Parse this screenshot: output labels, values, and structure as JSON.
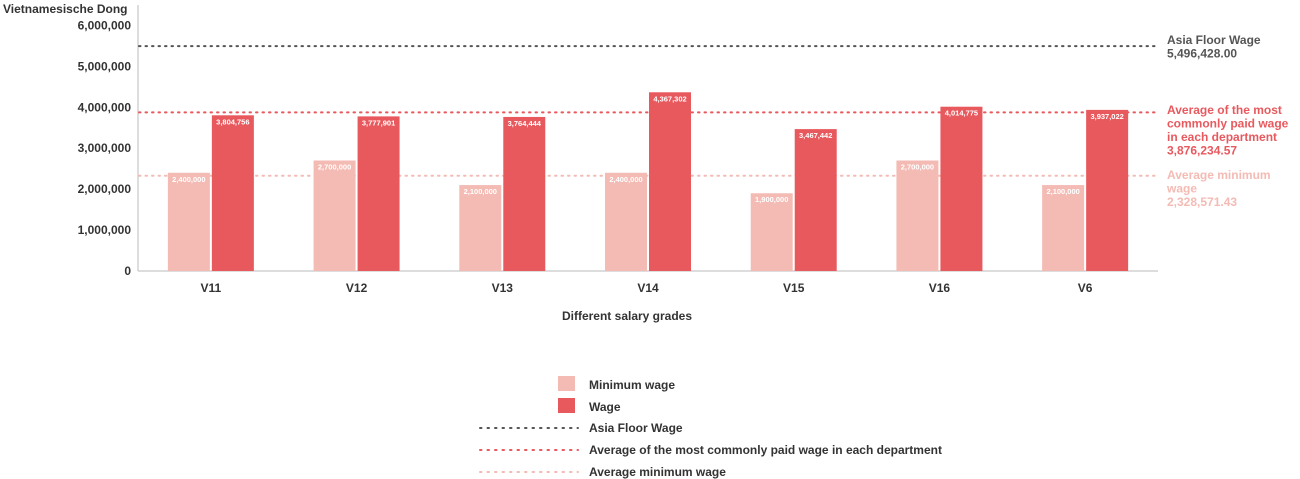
{
  "chart_data": {
    "type": "bar",
    "xlabel": "Different salary grades",
    "ylabel": "Vietnamesische Dong",
    "ylim": [
      0,
      6500000
    ],
    "yticks": [
      0,
      1000000,
      2000000,
      3000000,
      4000000,
      5000000,
      6000000
    ],
    "ytick_labels": [
      "0",
      "1,000,000",
      "2,000,000",
      "3,000,000",
      "4,000,000",
      "5,000,000",
      "6,000,000"
    ],
    "categories": [
      "V11",
      "V12",
      "V13",
      "V14",
      "V15",
      "V16",
      "V6"
    ],
    "series": [
      {
        "name": "Minimum wage",
        "color": "#f4bbb4",
        "values": [
          2400000,
          2700000,
          2100000,
          2400000,
          1900000,
          2700000,
          2100000
        ],
        "value_labels": [
          "2,400,000",
          "2,700,000",
          "2,100,000",
          "2,400,000",
          "1,900,000",
          "2,700,000",
          "2,100,000"
        ]
      },
      {
        "name": "Wage",
        "color": "#e8595e",
        "values": [
          3804756,
          3777901,
          3764444,
          4367302,
          3467442,
          4014775,
          3937022
        ],
        "value_labels": [
          "3,804,756",
          "3,777,901",
          "3,764,444",
          "4,367,302",
          "3,467,442",
          "4,014,775",
          "3,937,022"
        ]
      }
    ],
    "reference_lines": [
      {
        "name": "Asia Floor Wage",
        "value": 5496428.0,
        "label_lines": [
          "Asia Floor Wage"
        ],
        "value_label": "5,496,428.00",
        "color": "#555555"
      },
      {
        "name": "Average of the most commonly paid wage in each department",
        "value": 3876234.57,
        "label_lines": [
          "Average of the most",
          "commonly paid wage",
          "in each department"
        ],
        "value_label": "3,876,234.57",
        "color": "#e8595e"
      },
      {
        "name": "Average minimum wage",
        "value": 2328571.43,
        "label_lines": [
          "Average minimum",
          "wage"
        ],
        "value_label": "2,328,571.43",
        "color": "#f4bbb4"
      }
    ],
    "legend": {
      "placement": "bottom",
      "items": [
        {
          "label": "Minimum wage",
          "kind": "box",
          "color": "#f4bbb4"
        },
        {
          "label": "Wage",
          "kind": "box",
          "color": "#e8595e"
        },
        {
          "label": "Asia Floor Wage",
          "kind": "dots",
          "color": "#555555"
        },
        {
          "label": "Average of the most commonly paid wage in each department",
          "kind": "dots",
          "color": "#e8595e"
        },
        {
          "label": "Average minimum wage",
          "kind": "dots",
          "color": "#f4bbb4"
        }
      ]
    },
    "grid": false
  }
}
